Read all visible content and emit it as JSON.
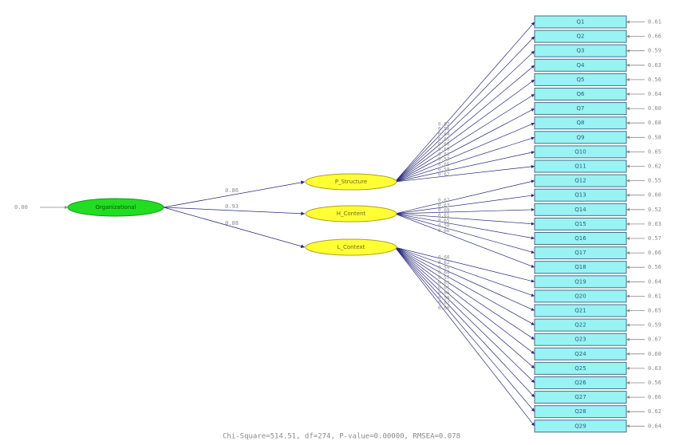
{
  "second_order": {
    "label": "Organizational",
    "error": "0.00"
  },
  "factors": [
    {
      "label": "P_Structure",
      "path": "0.86",
      "indicators": [
        {
          "label": "Q1",
          "loading": "0.62",
          "error": "0.61"
        },
        {
          "label": "Q2",
          "loading": "0.58",
          "error": "0.66"
        },
        {
          "label": "Q3",
          "loading": "0.64",
          "error": "0.59"
        },
        {
          "label": "Q4",
          "loading": "0.61",
          "error": "0.63"
        },
        {
          "label": "Q5",
          "loading": "0.66",
          "error": "0.56"
        },
        {
          "label": "Q6",
          "loading": "0.60",
          "error": "0.64"
        },
        {
          "label": "Q7",
          "loading": "0.63",
          "error": "0.60"
        },
        {
          "label": "Q8",
          "loading": "0.57",
          "error": "0.68"
        },
        {
          "label": "Q9",
          "loading": "0.65",
          "error": "0.58"
        },
        {
          "label": "Q10",
          "loading": "0.59",
          "error": "0.65"
        },
        {
          "label": "Q11",
          "loading": "0.62",
          "error": "0.62"
        }
      ]
    },
    {
      "label": "H_Content",
      "path": "0.93",
      "indicators": [
        {
          "label": "Q12",
          "loading": "0.67",
          "error": "0.55"
        },
        {
          "label": "Q13",
          "loading": "0.63",
          "error": "0.60"
        },
        {
          "label": "Q14",
          "loading": "0.69",
          "error": "0.52"
        },
        {
          "label": "Q15",
          "loading": "0.61",
          "error": "0.63"
        },
        {
          "label": "Q16",
          "loading": "0.65",
          "error": "0.57"
        },
        {
          "label": "Q17",
          "loading": "0.58",
          "error": "0.66"
        },
        {
          "label": "Q18",
          "loading": "0.66",
          "error": "0.56"
        }
      ]
    },
    {
      "label": "L_Context",
      "path": "0.88",
      "indicators": [
        {
          "label": "Q19",
          "loading": "0.60",
          "error": "0.64"
        },
        {
          "label": "Q20",
          "loading": "0.62",
          "error": "0.61"
        },
        {
          "label": "Q21",
          "loading": "0.59",
          "error": "0.65"
        },
        {
          "label": "Q22",
          "loading": "0.64",
          "error": "0.59"
        },
        {
          "label": "Q23",
          "loading": "0.57",
          "error": "0.67"
        },
        {
          "label": "Q24",
          "loading": "0.63",
          "error": "0.60"
        },
        {
          "label": "Q25",
          "loading": "0.61",
          "error": "0.63"
        },
        {
          "label": "Q26",
          "loading": "0.66",
          "error": "0.56"
        },
        {
          "label": "Q27",
          "loading": "0.58",
          "error": "0.66"
        },
        {
          "label": "Q28",
          "loading": "0.62",
          "error": "0.62"
        },
        {
          "label": "Q29",
          "loading": "0.60",
          "error": "0.64"
        }
      ]
    }
  ],
  "fit": "Chi-Square=514.51, df=274, P-value=0.00000, RMSEA=0.078"
}
